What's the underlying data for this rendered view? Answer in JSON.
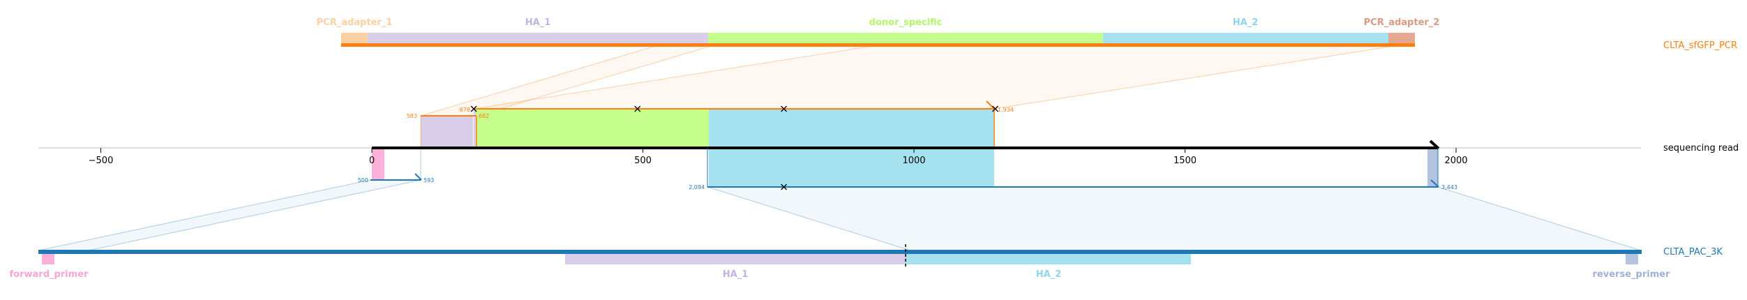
{
  "colors": {
    "pcr_adapter_1": "#fdd0a2",
    "ha_1": "#dacdea",
    "donor_specific": "#c5fe8d",
    "ha_2": "#a6e1ef",
    "pcr_adapter_2": "#e6a892",
    "orange": "#ff7f0e",
    "blue": "#1f77b4",
    "forward_primer": "#fbb0d9",
    "reverse_primer": "#b3c3e0",
    "axis": "#000000"
  },
  "top_reference": {
    "name": "CLTA_sfGFP_PCR",
    "features": [
      {
        "label": "PCR_adapter_1",
        "color_key": "pcr_adapter_1"
      },
      {
        "label": "HA_1",
        "color_key": "ha_1"
      },
      {
        "label": "donor_specific",
        "color_key": "donor_specific"
      },
      {
        "label": "HA_2",
        "color_key": "ha_2"
      },
      {
        "label": "PCR_adapter_2",
        "color_key": "pcr_adapter_2"
      }
    ]
  },
  "bottom_reference": {
    "name": "CLTA_PAC_3K",
    "features": [
      {
        "label": "forward_primer",
        "color_key": "forward_primer"
      },
      {
        "label": "HA_1",
        "color_key": "ha_1"
      },
      {
        "label": "HA_2",
        "color_key": "ha_2"
      },
      {
        "label": "reverse_primer",
        "color_key": "reverse_primer"
      }
    ]
  },
  "read": {
    "label": "sequencing read",
    "length": 1970,
    "axis_ticks": [
      -500,
      0,
      500,
      1000,
      1500,
      2000
    ],
    "axis_tick_labels": [
      "−500",
      "0",
      "500",
      "1000",
      "1500",
      "2000"
    ]
  },
  "alignments": {
    "top_a": {
      "ref_start_label": "583",
      "read_start": 91,
      "read_end": 191
    },
    "top_b": {
      "ref_start_label": "678",
      "ref_end_label": "1,934",
      "mid_label": "682",
      "read_start": 189,
      "read_end": 1150
    },
    "bottom_a": {
      "ref_start_label": "500",
      "ref_end_label": "593",
      "read_start": 0,
      "read_end": 93
    },
    "bottom_b": {
      "ref_start_label": "2,094",
      "ref_end_label": "3,443",
      "read_start": 621,
      "read_end": 1970
    }
  },
  "mismatch_marks": {
    "top": [
      188,
      490,
      760,
      1150
    ],
    "bottom": [
      760
    ]
  }
}
